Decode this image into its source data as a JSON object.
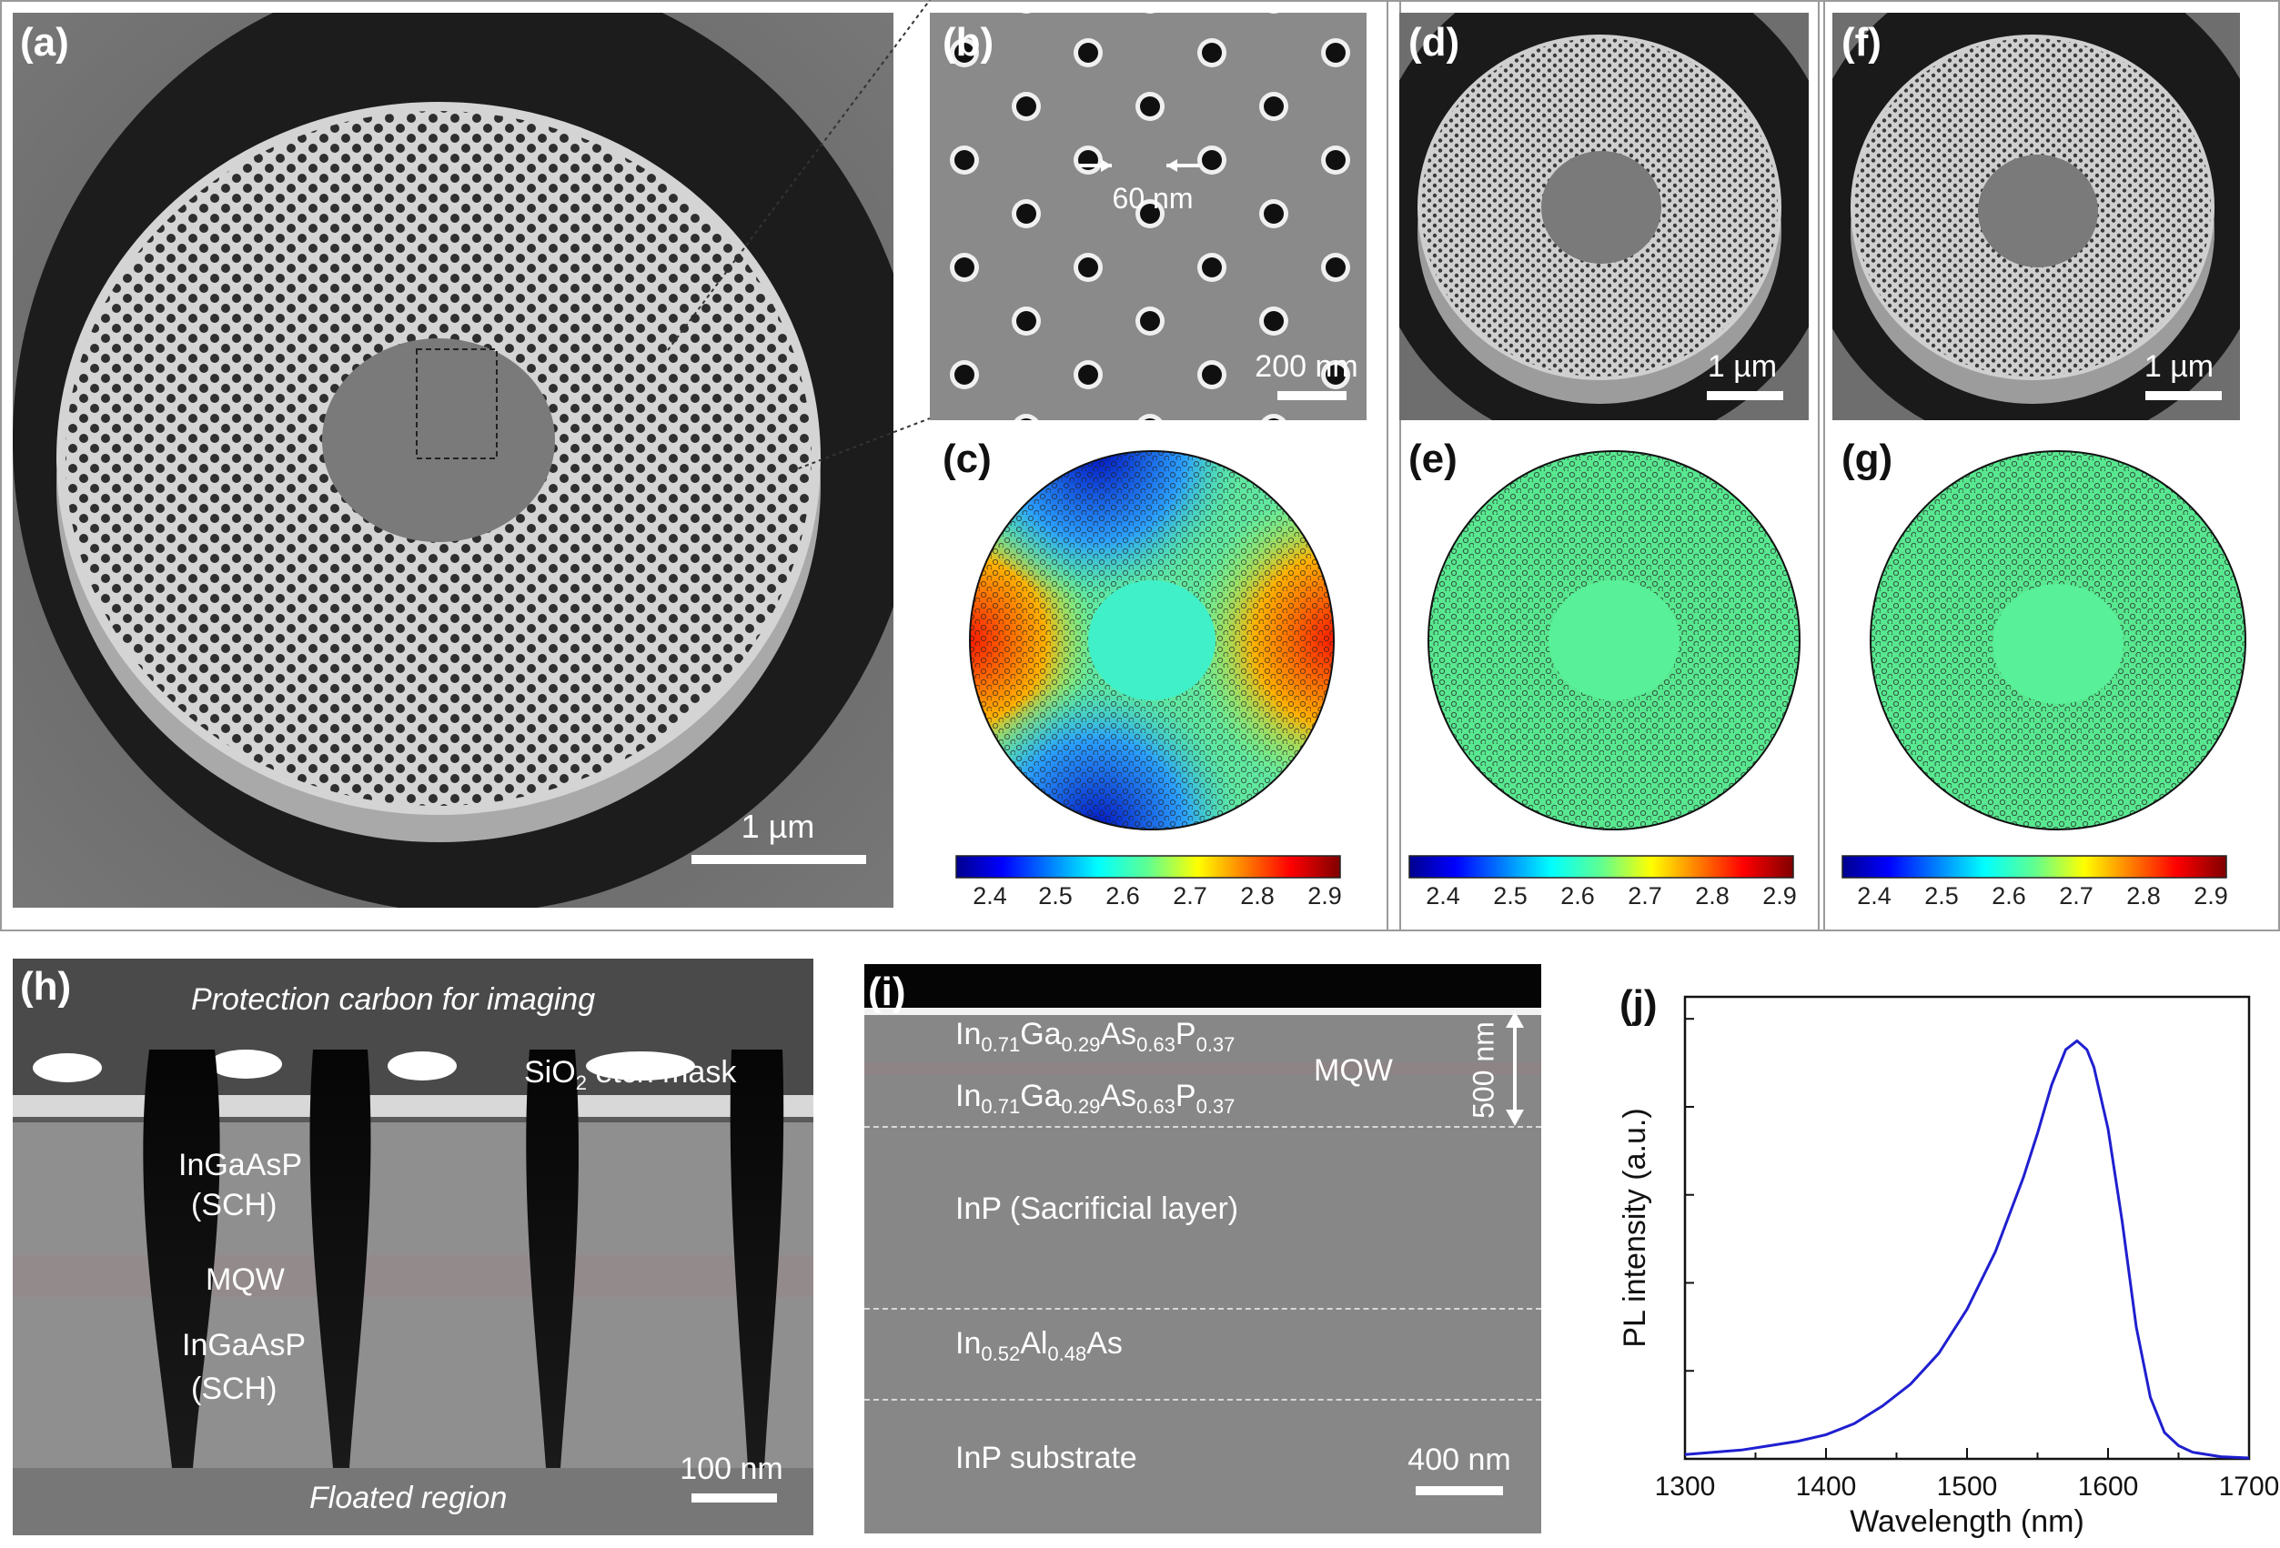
{
  "panels": {
    "a": {
      "label": "(a)",
      "scale": "1 µm"
    },
    "b": {
      "label": "(b)",
      "scale": "200 nm",
      "hole_size": "60 nm"
    },
    "c": {
      "label": "(c)"
    },
    "d": {
      "label": "(d)",
      "scale": "1 µm"
    },
    "e": {
      "label": "(e)"
    },
    "f": {
      "label": "(f)",
      "scale": "1 µm"
    },
    "g": {
      "label": "(g)"
    },
    "h": {
      "label": "(h)",
      "scale": "100 nm",
      "top_text": "Protection carbon for imaging",
      "mask_text_pre": "SiO",
      "mask_text_sub": "2",
      "mask_text_post": " etch mask",
      "sch_top_1": "InGaAsP",
      "sch_top_2": "(SCH)",
      "mqw": "MQW",
      "sch_bot_1": "InGaAsP",
      "sch_bot_2": "(SCH)",
      "bottom_text": "Floated region"
    },
    "i": {
      "label": "(i)",
      "scale": "400 nm",
      "thickness": "500 nm",
      "mqw": "MQW",
      "sacrificial": "InP (Sacrificial layer)",
      "substrate": "InP substrate"
    },
    "j": {
      "label": "(j)"
    }
  },
  "colorbar_ticks": [
    "2.4",
    "2.5",
    "2.6",
    "2.7",
    "2.8",
    "2.9"
  ],
  "chart_data": {
    "type": "line",
    "xlabel": "Wavelength (nm)",
    "ylabel": "PL intensity (a.u.)",
    "xlim": [
      1300,
      1700
    ],
    "ylim": [
      0,
      1.05
    ],
    "xticks": [
      "1300",
      "1400",
      "1500",
      "1600",
      "1700"
    ],
    "color": "#1f1fd0",
    "x": [
      1300,
      1320,
      1340,
      1360,
      1380,
      1400,
      1420,
      1440,
      1460,
      1480,
      1500,
      1520,
      1540,
      1550,
      1560,
      1570,
      1578,
      1585,
      1590,
      1600,
      1610,
      1620,
      1630,
      1640,
      1650,
      1660,
      1680,
      1700
    ],
    "y": [
      0.01,
      0.015,
      0.02,
      0.03,
      0.04,
      0.055,
      0.08,
      0.12,
      0.17,
      0.24,
      0.34,
      0.47,
      0.64,
      0.74,
      0.85,
      0.93,
      0.95,
      0.93,
      0.89,
      0.75,
      0.54,
      0.3,
      0.14,
      0.06,
      0.03,
      0.015,
      0.005,
      0.002
    ]
  }
}
